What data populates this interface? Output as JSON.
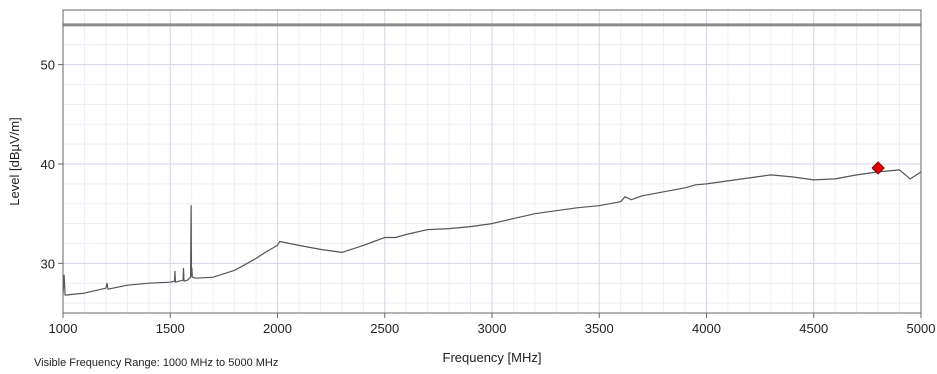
{
  "chart_data": {
    "type": "line",
    "xlabel": "Frequency [MHz]",
    "ylabel": "Level [dBµV/m]",
    "xlim": [
      1000,
      5000
    ],
    "ylim": [
      25.0,
      55.5
    ],
    "x_ticks": [
      1000,
      1500,
      2000,
      2500,
      3000,
      3500,
      4000,
      4500,
      5000
    ],
    "y_ticks": [
      30,
      40,
      50
    ],
    "grid": true,
    "colors": {
      "trace": "#555555",
      "limit": "#8c8c8c",
      "marker": "#e00000",
      "grid_major": "#d4d6e6",
      "grid_minor": "#eceef5"
    },
    "series": [
      {
        "kind": "limit-line",
        "x": [
          1000,
          5000
        ],
        "y": [
          54,
          54
        ]
      },
      {
        "kind": "trace",
        "x": [
          1000,
          1005,
          1010,
          1100,
          1200,
          1205,
          1210,
          1300,
          1400,
          1500,
          1520,
          1522,
          1524,
          1540,
          1560,
          1562,
          1564,
          1580,
          1595,
          1597,
          1599,
          1601,
          1603,
          1620,
          1700,
          1800,
          1900,
          1950,
          2000,
          2010,
          2100,
          2200,
          2300,
          2400,
          2450,
          2500,
          2550,
          2600,
          2700,
          2800,
          2900,
          3000,
          3100,
          3200,
          3300,
          3400,
          3500,
          3550,
          3600,
          3620,
          3650,
          3700,
          3800,
          3900,
          3950,
          4000,
          4100,
          4200,
          4300,
          4400,
          4500,
          4600,
          4700,
          4800,
          4900,
          4950,
          5000
        ],
        "y": [
          26.8,
          28.8,
          26.8,
          27.0,
          27.5,
          28.0,
          27.4,
          27.8,
          28.0,
          28.1,
          28.2,
          29.2,
          28.1,
          28.2,
          28.3,
          29.5,
          28.2,
          28.3,
          28.6,
          35.8,
          28.7,
          29.5,
          28.6,
          28.5,
          28.6,
          29.3,
          30.5,
          31.2,
          31.8,
          32.2,
          31.8,
          31.4,
          31.1,
          31.8,
          32.2,
          32.6,
          32.6,
          32.9,
          33.4,
          33.5,
          33.7,
          34.0,
          34.5,
          35.0,
          35.3,
          35.6,
          35.8,
          36.0,
          36.2,
          36.7,
          36.4,
          36.8,
          37.2,
          37.6,
          37.9,
          38.0,
          38.3,
          38.6,
          38.9,
          38.7,
          38.4,
          38.5,
          38.9,
          39.2,
          39.4,
          38.5,
          39.2
        ]
      }
    ],
    "marker": {
      "x": 4800,
      "y": 39.6
    },
    "note": "Visible Frequency Range: 1000 MHz to 5000 MHz"
  }
}
